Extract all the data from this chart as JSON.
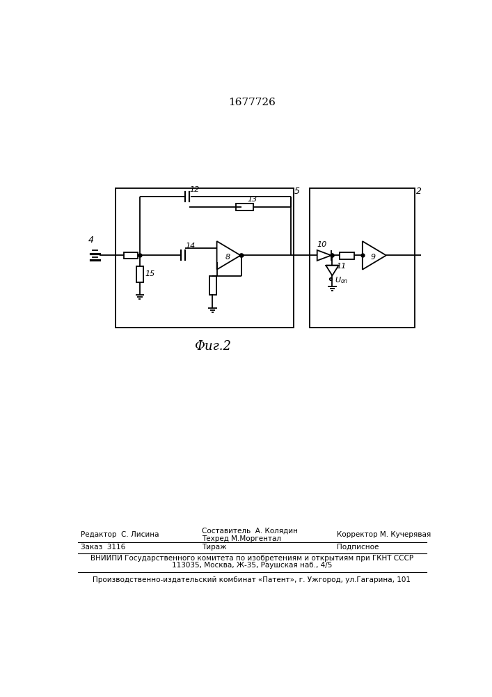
{
  "title": "1677726",
  "fig_label": "Фиг.2",
  "bg_color": "#ffffff",
  "line_color": "#000000",
  "title_fontsize": 11,
  "fig_label_fontsize": 13,
  "footer": {
    "editor": "Редактор  С. Лисина",
    "composer": "Составитель  А. Колядин",
    "techred": "Техред М.Моргентал",
    "corrector": "Корректор М. Кучерявая",
    "order": "Заказ  3116",
    "tirazh": "Тираж",
    "podpisnoe": "Подписное",
    "vniipи": "ВНИИПИ Государственного комитета по изобретениям и открытиям при ГКНТ СССР",
    "address": "113035, Москва, Ж-35, Раушская наб., 4/5",
    "patent": "Производственно-издательский комбинат «Патент», г. Ужгород, ул.Гагарина, 101"
  }
}
